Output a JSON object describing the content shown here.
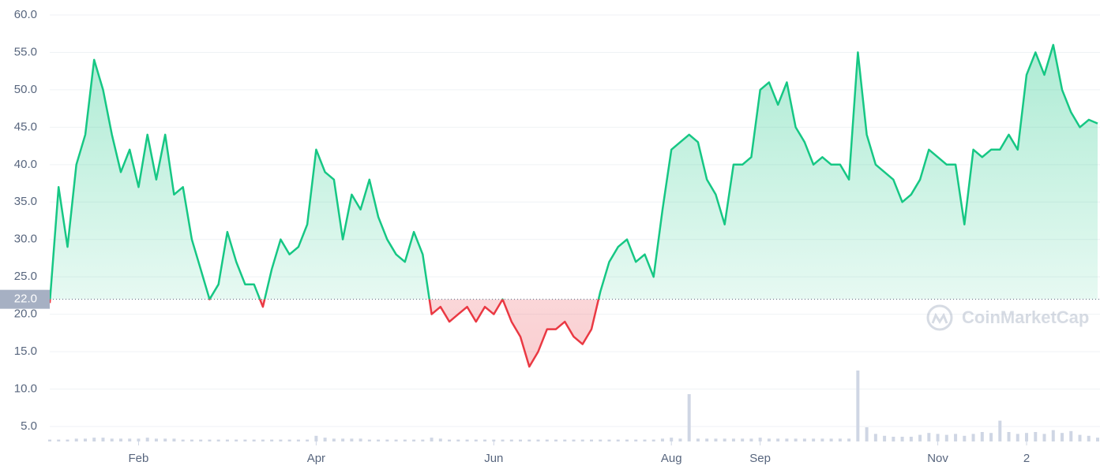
{
  "chart_data": {
    "type": "line",
    "categories": [
      null,
      null,
      null,
      null,
      null,
      null,
      null,
      null,
      null,
      null,
      "Feb",
      null,
      null,
      null,
      null,
      null,
      null,
      null,
      null,
      null,
      null,
      null,
      null,
      null,
      null,
      null,
      null,
      null,
      null,
      null,
      "Apr",
      null,
      null,
      null,
      null,
      null,
      null,
      null,
      null,
      null,
      null,
      null,
      null,
      null,
      null,
      null,
      null,
      null,
      null,
      null,
      "Jun",
      null,
      null,
      null,
      null,
      null,
      null,
      null,
      null,
      null,
      null,
      null,
      null,
      null,
      null,
      null,
      null,
      null,
      null,
      null,
      "Aug",
      null,
      null,
      null,
      null,
      null,
      null,
      null,
      null,
      null,
      "Sep",
      null,
      null,
      null,
      null,
      null,
      null,
      null,
      null,
      null,
      null,
      null,
      null,
      null,
      null,
      null,
      null,
      null,
      null,
      null,
      "Nov",
      null,
      null,
      null,
      null,
      null,
      null,
      null,
      null,
      null,
      "2",
      null,
      null,
      null,
      null,
      null,
      null,
      null,
      null
    ],
    "values": [
      21.5,
      37,
      29,
      40,
      44,
      54,
      50,
      44,
      39,
      42,
      37,
      44,
      38,
      44,
      36,
      37,
      30,
      26,
      22,
      24,
      31,
      27,
      24,
      24,
      21,
      26,
      30,
      28,
      29,
      32,
      42,
      39,
      38,
      30,
      36,
      34,
      38,
      33,
      30,
      28,
      27,
      31,
      28,
      20,
      21,
      19,
      20,
      21,
      19,
      21,
      20,
      22,
      19,
      17,
      13,
      15,
      18,
      18,
      19,
      17,
      16,
      18,
      23,
      27,
      29,
      30,
      27,
      28,
      25,
      34,
      42,
      43,
      44,
      43,
      38,
      36,
      32,
      40,
      40,
      41,
      50,
      51,
      48,
      51,
      45,
      43,
      40,
      41,
      40,
      40,
      38,
      55,
      44,
      40,
      39,
      38,
      35,
      36,
      38,
      42,
      41,
      40,
      40,
      32,
      42,
      41,
      42,
      42,
      44,
      42,
      52,
      55,
      52,
      56,
      50,
      47,
      45,
      46,
      45.5
    ],
    "volume": [
      2,
      2,
      2,
      3,
      3,
      4,
      4,
      3,
      3,
      3,
      3,
      4,
      3,
      3,
      3,
      2,
      2,
      2,
      2,
      2,
      2,
      2,
      2,
      2,
      2,
      2,
      2,
      2,
      2,
      2,
      6,
      4,
      3,
      3,
      3,
      3,
      2,
      2,
      2,
      2,
      2,
      2,
      2,
      4,
      3,
      2,
      2,
      2,
      2,
      2,
      2,
      2,
      2,
      2,
      2,
      2,
      2,
      2,
      2,
      2,
      2,
      2,
      2,
      2,
      2,
      2,
      2,
      2,
      2,
      3,
      4,
      3,
      50,
      3,
      3,
      3,
      3,
      3,
      3,
      3,
      4,
      3,
      3,
      3,
      3,
      3,
      3,
      3,
      3,
      3,
      3,
      75,
      15,
      8,
      6,
      5,
      5,
      5,
      7,
      9,
      8,
      7,
      8,
      6,
      8,
      10,
      9,
      22,
      10,
      8,
      9,
      10,
      8,
      12,
      9,
      11,
      7,
      6,
      4
    ],
    "baseline": {
      "value": 22,
      "label": "22.0"
    },
    "up_color": "#16c784",
    "down_color": "#ea3943",
    "volume_color": "#cfd6e4",
    "ylim": [
      3,
      62
    ],
    "yticks": [
      {
        "value": 5,
        "label": "5.0"
      },
      {
        "value": 10,
        "label": "10.0"
      },
      {
        "value": 15,
        "label": "15.0"
      },
      {
        "value": 20,
        "label": "20.0"
      },
      {
        "value": 25,
        "label": "25.0"
      },
      {
        "value": 30,
        "label": "30.0"
      },
      {
        "value": 35,
        "label": "35.0"
      },
      {
        "value": 40,
        "label": "40.0"
      },
      {
        "value": 45,
        "label": "45.0"
      },
      {
        "value": 50,
        "label": "50.0"
      },
      {
        "value": 55,
        "label": "55.0"
      },
      {
        "value": 60,
        "label": "60.0"
      }
    ],
    "grid": true,
    "watermark": "CoinMarketCap"
  }
}
